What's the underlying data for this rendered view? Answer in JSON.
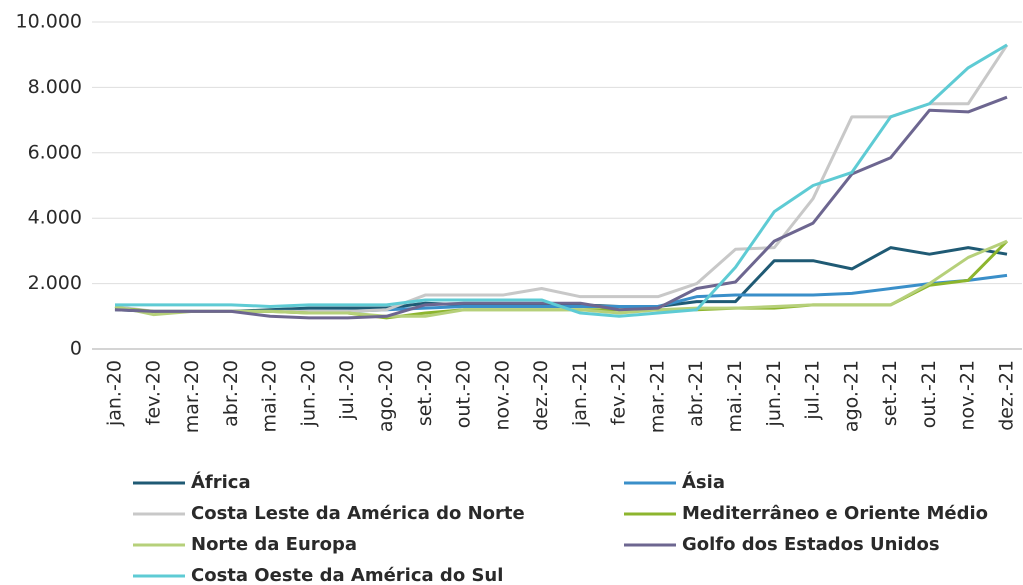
{
  "chart_data": {
    "type": "line",
    "categories": [
      "jan.-20",
      "fev.-20",
      "mar.-20",
      "abr.-20",
      "mai.-20",
      "jun.-20",
      "jul.-20",
      "ago.-20",
      "set.-20",
      "out.-20",
      "nov.-20",
      "dez.-20",
      "jan.-21",
      "fev.-21",
      "mar.-21",
      "abr.-21",
      "mai.-21",
      "jun.-21",
      "jul.-21",
      "ago.-21",
      "set.-21",
      "out.-21",
      "nov.-21",
      "dez.-21"
    ],
    "series": [
      {
        "name": "África",
        "color": "#1f5a74",
        "values": [
          1200,
          1150,
          1150,
          1150,
          1200,
          1250,
          1250,
          1250,
          1400,
          1350,
          1350,
          1350,
          1350,
          1300,
          1300,
          1450,
          1450,
          2700,
          2700,
          2450,
          3100,
          2900,
          3100,
          2900
        ]
      },
      {
        "name": "Ásia",
        "color": "#3a8fc9",
        "values": [
          1250,
          1150,
          1150,
          1150,
          1150,
          1150,
          1150,
          1200,
          1250,
          1300,
          1300,
          1300,
          1300,
          1300,
          1300,
          1600,
          1650,
          1650,
          1650,
          1700,
          1850,
          2000,
          2100,
          2250
        ]
      },
      {
        "name": "Costa Leste da América do Norte",
        "color": "#c8c8c8",
        "values": [
          1300,
          1150,
          1150,
          1150,
          1150,
          1150,
          1150,
          1200,
          1650,
          1650,
          1650,
          1850,
          1600,
          1600,
          1600,
          2000,
          3050,
          3100,
          4600,
          7100,
          7100,
          7500,
          7500,
          9300
        ]
      },
      {
        "name": "Mediterrâneo e Oriente Médio",
        "color": "#8db52e",
        "values": [
          1250,
          1150,
          1150,
          1150,
          1150,
          1100,
          1100,
          950,
          1100,
          1200,
          1200,
          1200,
          1200,
          1200,
          1200,
          1200,
          1250,
          1250,
          1350,
          1350,
          1350,
          1950,
          2100,
          3300
        ]
      },
      {
        "name": "Norte da Europa",
        "color": "#b6d07a",
        "values": [
          1300,
          1050,
          1150,
          1150,
          1150,
          1100,
          1100,
          1000,
          1000,
          1200,
          1200,
          1200,
          1200,
          1100,
          1200,
          1250,
          1250,
          1300,
          1350,
          1350,
          1350,
          2000,
          2800,
          3300
        ]
      },
      {
        "name": "Golfo dos Estados Unidos",
        "color": "#6d6690",
        "values": [
          1200,
          1150,
          1150,
          1150,
          1000,
          950,
          950,
          1000,
          1350,
          1400,
          1400,
          1400,
          1400,
          1200,
          1250,
          1850,
          2050,
          3300,
          3850,
          5350,
          5850,
          7300,
          7250,
          7700
        ]
      },
      {
        "name": "Costa Oeste da América do Sul",
        "color": "#5ecbd4",
        "values": [
          1350,
          1350,
          1350,
          1350,
          1300,
          1350,
          1350,
          1350,
          1500,
          1500,
          1500,
          1500,
          1100,
          1000,
          1100,
          1200,
          2500,
          4200,
          5000,
          5400,
          7100,
          7500,
          8600,
          9300
        ]
      }
    ],
    "ylim": [
      0,
      10000
    ],
    "yticks": [
      0,
      {
        "value": 2000,
        "label": "2.000"
      },
      {
        "value": 4000,
        "label": "4.000"
      },
      {
        "value": 6000,
        "label": "6.000"
      },
      {
        "value": 8000,
        "label": "8.000"
      },
      {
        "value": 10000,
        "label": "10.000"
      }
    ],
    "grid": true
  }
}
